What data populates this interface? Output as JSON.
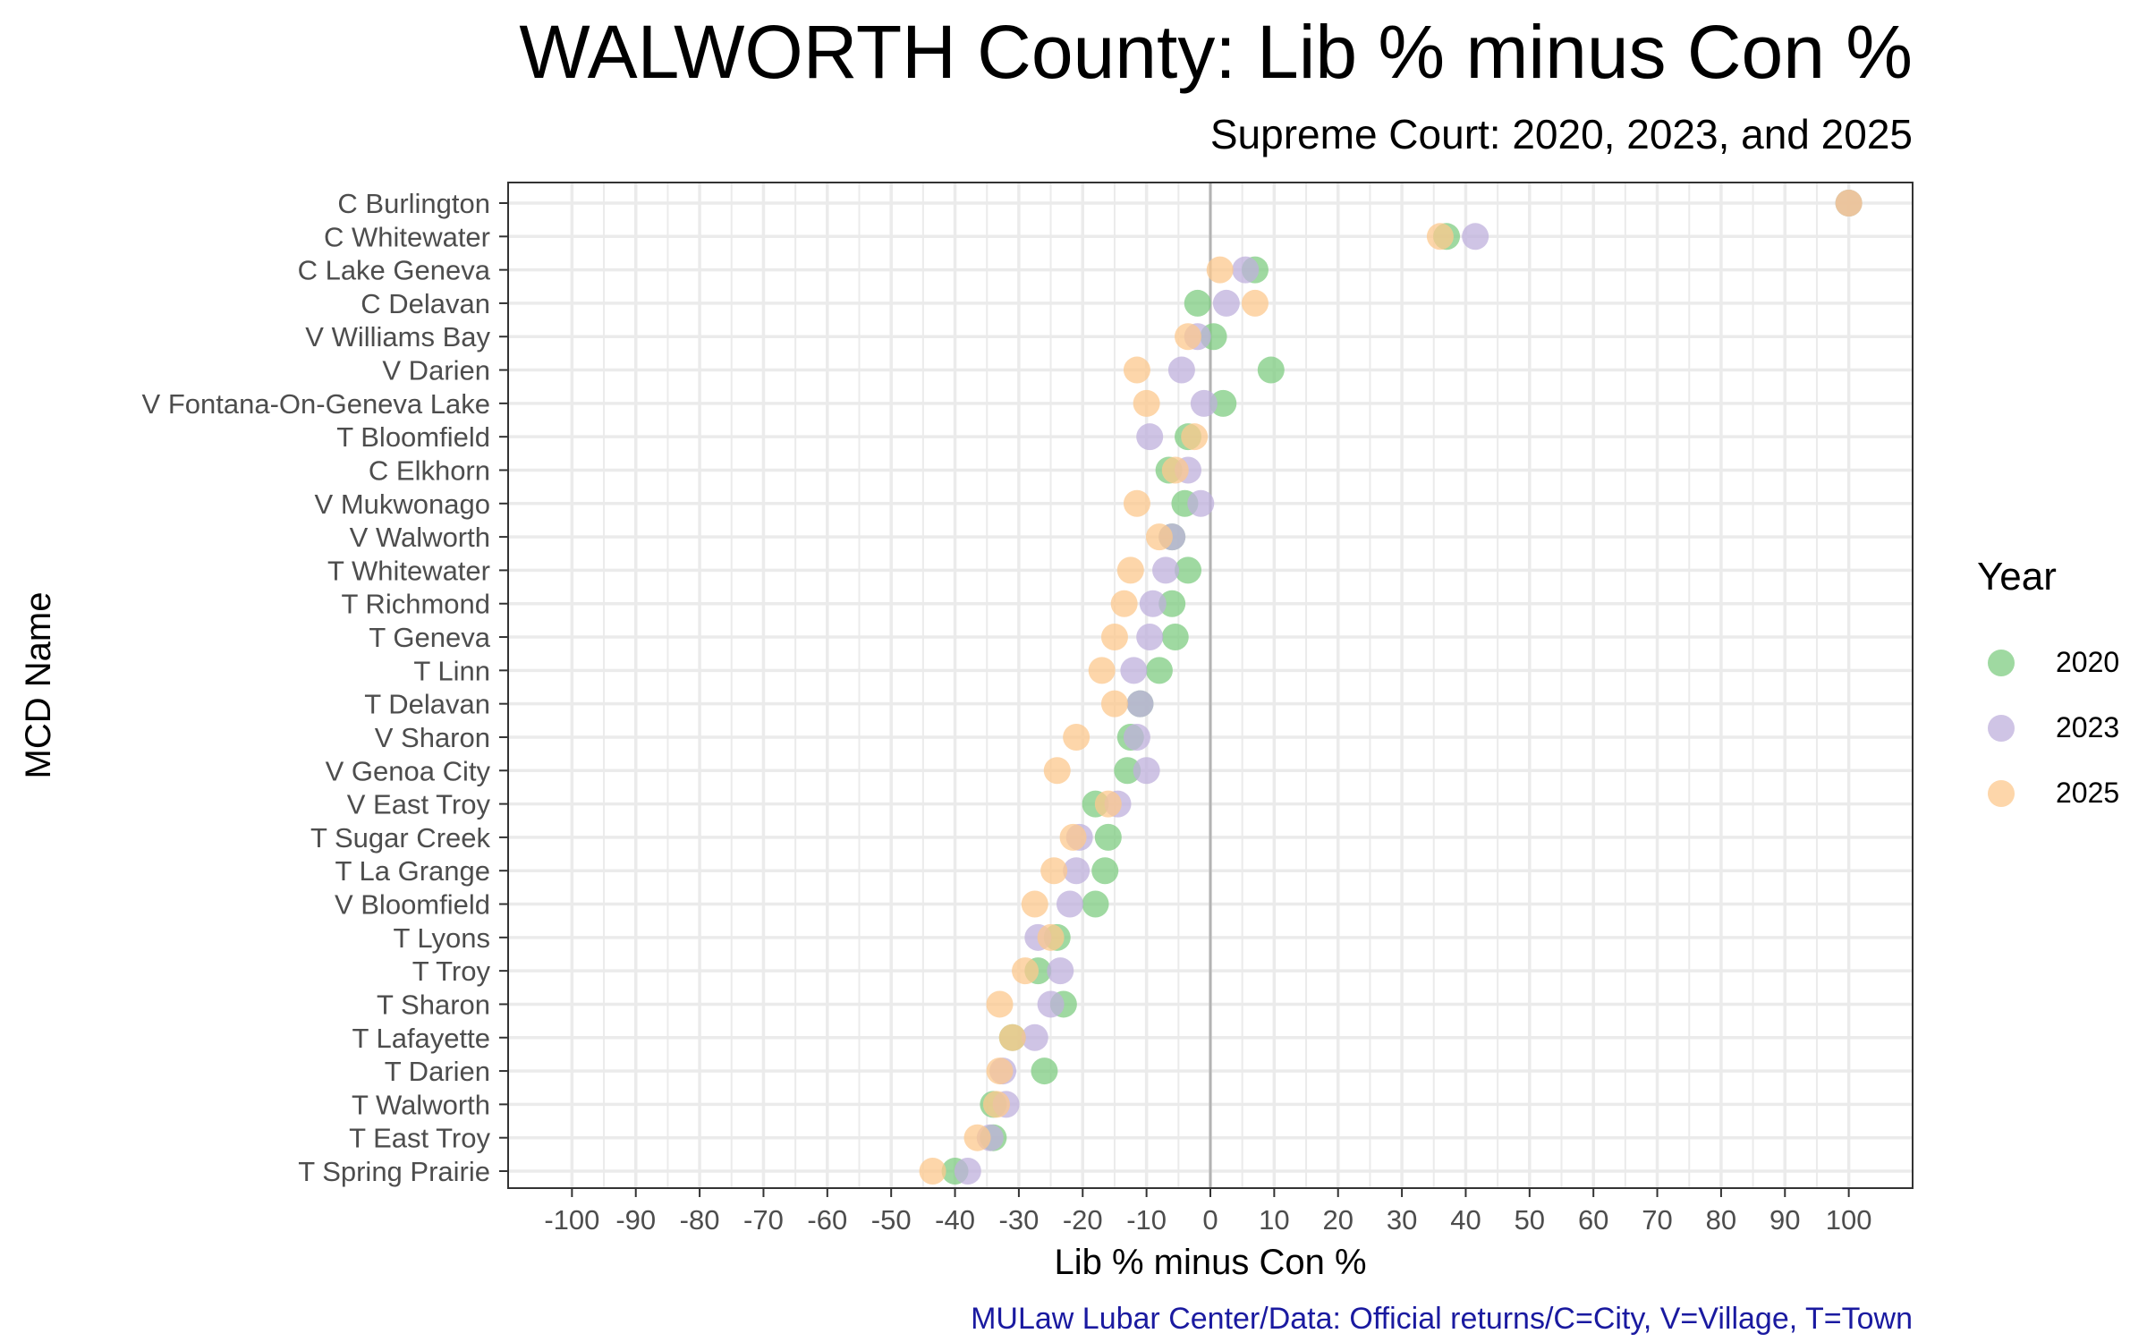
{
  "chart_data": {
    "type": "scatter",
    "title": "WALWORTH County: Lib % minus Con %",
    "subtitle": "Supreme Court: 2020, 2023, and 2025",
    "xlabel": "Lib % minus Con %",
    "ylabel": "MCD Name",
    "caption": "MULaw Lubar Center/Data: Official returns/C=City, V=Village, T=Town",
    "xlim": [
      -110,
      110
    ],
    "x_ticks": [
      -100,
      -90,
      -80,
      -70,
      -60,
      -50,
      -40,
      -30,
      -20,
      -10,
      0,
      10,
      20,
      30,
      40,
      50,
      60,
      70,
      80,
      90,
      100
    ],
    "x_tick_labels": [
      "-100",
      "-90",
      "-80",
      "-70",
      "-60",
      "-50",
      "-40",
      "-30",
      "-20",
      "-10",
      "0",
      "10",
      "20",
      "30",
      "40",
      "50",
      "60",
      "70",
      "80",
      "90",
      "100"
    ],
    "grid": true,
    "reference_line_x": 0,
    "legend_title": "Year",
    "legend_position": "right",
    "categories": [
      "C Burlington",
      "C Whitewater",
      "C Lake Geneva",
      "C Delavan",
      "V Williams Bay",
      "V Darien",
      "V Fontana-On-Geneva Lake",
      "T Bloomfield",
      "C Elkhorn",
      "V Mukwonago",
      "V Walworth",
      "T Whitewater",
      "T Richmond",
      "T Geneva",
      "T Linn",
      "T Delavan",
      "V Sharon",
      "V Genoa City",
      "V East Troy",
      "T Sugar Creek",
      "T La Grange",
      "V Bloomfield",
      "T Lyons",
      "T Troy",
      "T Sharon",
      "T Lafayette",
      "T Darien",
      "T Walworth",
      "T East Troy",
      "T Spring Prairie"
    ],
    "series": [
      {
        "name": "2020",
        "color": "#7fcc82",
        "values": [
          100,
          37,
          7,
          -2,
          0.5,
          9.5,
          2,
          -3.5,
          -6.5,
          -4,
          -6,
          -3.5,
          -6,
          -5.5,
          -8,
          -11,
          -12.5,
          -13,
          -18,
          -16,
          -16.5,
          -18,
          -24,
          -27,
          -23,
          -31,
          -26,
          -34,
          -34,
          -40
        ]
      },
      {
        "name": "2023",
        "color": "#bfb0dc",
        "values": [
          100,
          41.5,
          5.5,
          2.5,
          -2,
          -4.5,
          -1,
          -9.5,
          -3.5,
          -1.5,
          -6,
          -7,
          -9,
          -9.5,
          -12,
          -11,
          -11.5,
          -10,
          -14.5,
          -20.5,
          -21,
          -22,
          -27,
          -23.5,
          -25,
          -27.5,
          -32.5,
          -32,
          -34.5,
          -38
        ]
      },
      {
        "name": "2025",
        "color": "#fcc88e",
        "values": [
          100,
          36,
          1.5,
          7,
          -3.5,
          -11.5,
          -10,
          -2.5,
          -5.5,
          -11.5,
          -8,
          -12.5,
          -13.5,
          -15,
          -17,
          -15,
          -21,
          -24,
          -16,
          -21.5,
          -24.5,
          -27.5,
          -25,
          -29,
          -33,
          -31,
          -33,
          -33.5,
          -36.5,
          -43.5
        ]
      }
    ]
  }
}
